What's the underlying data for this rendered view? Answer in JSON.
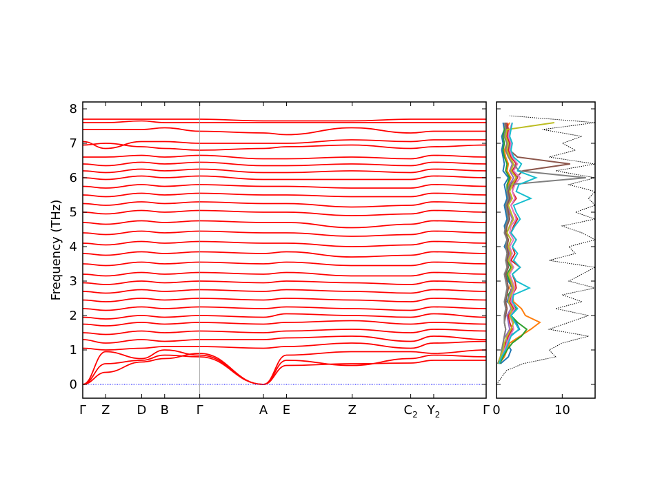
{
  "chart_data": [
    {
      "type": "line",
      "panel": "band-structure",
      "ylabel": "Frequency (THz)",
      "ylim": [
        -0.4,
        8.2
      ],
      "yticks": [
        0,
        1,
        2,
        3,
        4,
        5,
        6,
        7,
        8
      ],
      "kpath_ticks": [
        {
          "label": "Γ",
          "sub": "",
          "pos": 0.0
        },
        {
          "label": "Z",
          "sub": "",
          "pos": 0.057
        },
        {
          "label": "D",
          "sub": "",
          "pos": 0.146
        },
        {
          "label": "B",
          "sub": "",
          "pos": 0.203
        },
        {
          "label": "Γ",
          "sub": "",
          "pos": 0.29
        },
        {
          "label": "A",
          "sub": "",
          "pos": 0.448
        },
        {
          "label": "E",
          "sub": "",
          "pos": 0.505
        },
        {
          "label": "Z",
          "sub": "",
          "pos": 0.668
        },
        {
          "label": "C",
          "sub": "2",
          "pos": 0.813
        },
        {
          "label": "Y",
          "sub": "2",
          "pos": 0.87
        },
        {
          "label": "Γ",
          "sub": "",
          "pos": 1.0
        }
      ],
      "vertical_lines_at": [
        0.29
      ],
      "zero_line": {
        "y": 0,
        "color": "#0000ff",
        "style": "dotted"
      },
      "band_color": "#ff0000",
      "series": [
        {
          "values": [
            0.0,
            0.35,
            0.65,
            0.75,
            0.9,
            0.0,
            0.55,
            0.6,
            0.62,
            0.7,
            0.7,
            0.0
          ]
        },
        {
          "values": [
            0.0,
            0.6,
            0.7,
            0.85,
            0.8,
            0.0,
            0.7,
            0.55,
            0.75,
            0.85,
            0.8,
            0.0
          ]
        },
        {
          "values": [
            0.0,
            0.95,
            0.75,
            1.0,
            0.85,
            0.0,
            0.85,
            0.95,
            0.95,
            0.9,
            1.0,
            0.0
          ]
        },
        {
          "values": [
            1.05,
            1.0,
            1.05,
            1.1,
            1.1,
            1.05,
            1.1,
            1.2,
            1.05,
            1.2,
            1.25,
            1.05
          ]
        },
        {
          "values": [
            1.3,
            1.2,
            1.3,
            1.25,
            1.3,
            1.3,
            1.35,
            1.4,
            1.25,
            1.4,
            1.3,
            1.3
          ]
        },
        {
          "values": [
            1.5,
            1.45,
            1.55,
            1.5,
            1.55,
            1.5,
            1.55,
            1.6,
            1.5,
            1.6,
            1.55,
            1.5
          ]
        },
        {
          "values": [
            1.75,
            1.7,
            1.8,
            1.75,
            1.8,
            1.75,
            1.8,
            1.85,
            1.75,
            1.8,
            1.75,
            1.75
          ]
        },
        {
          "values": [
            1.95,
            1.9,
            2.0,
            1.95,
            2.0,
            1.95,
            2.05,
            2.0,
            1.95,
            2.05,
            1.95,
            1.95
          ]
        },
        {
          "values": [
            2.2,
            2.15,
            2.25,
            2.2,
            2.25,
            2.2,
            2.25,
            2.2,
            2.15,
            2.25,
            2.2,
            2.2
          ]
        },
        {
          "values": [
            2.45,
            2.4,
            2.5,
            2.45,
            2.5,
            2.45,
            2.5,
            2.45,
            2.4,
            2.5,
            2.45,
            2.45
          ]
        },
        {
          "values": [
            2.7,
            2.65,
            2.75,
            2.7,
            2.75,
            2.7,
            2.75,
            2.7,
            2.65,
            2.75,
            2.7,
            2.7
          ]
        },
        {
          "values": [
            2.95,
            2.9,
            3.0,
            2.95,
            3.0,
            2.95,
            3.0,
            2.95,
            2.9,
            3.0,
            2.95,
            2.95
          ]
        },
        {
          "values": [
            3.2,
            3.15,
            3.25,
            3.2,
            3.25,
            3.2,
            3.25,
            3.15,
            3.15,
            3.25,
            3.2,
            3.2
          ]
        },
        {
          "values": [
            3.5,
            3.45,
            3.55,
            3.5,
            3.55,
            3.5,
            3.55,
            3.45,
            3.45,
            3.55,
            3.5,
            3.5
          ]
        },
        {
          "values": [
            3.8,
            3.75,
            3.85,
            3.8,
            3.85,
            3.8,
            3.85,
            3.7,
            3.75,
            3.85,
            3.8,
            3.8
          ]
        },
        {
          "values": [
            4.1,
            4.05,
            4.15,
            4.1,
            4.15,
            4.1,
            4.1,
            4.0,
            4.05,
            4.15,
            4.1,
            4.1
          ]
        },
        {
          "values": [
            4.4,
            4.35,
            4.45,
            4.4,
            4.45,
            4.4,
            4.4,
            4.3,
            4.35,
            4.45,
            4.4,
            4.4
          ]
        },
        {
          "values": [
            4.7,
            4.65,
            4.75,
            4.7,
            4.75,
            4.7,
            4.7,
            4.55,
            4.65,
            4.75,
            4.7,
            4.7
          ]
        },
        {
          "values": [
            5.0,
            4.95,
            5.05,
            5.0,
            5.05,
            5.0,
            5.0,
            4.9,
            4.95,
            5.05,
            5.0,
            5.0
          ]
        },
        {
          "values": [
            5.25,
            5.2,
            5.3,
            5.25,
            5.3,
            5.25,
            5.25,
            5.15,
            5.2,
            5.3,
            5.25,
            5.25
          ]
        },
        {
          "values": [
            5.5,
            5.45,
            5.55,
            5.5,
            5.55,
            5.5,
            5.5,
            5.45,
            5.45,
            5.55,
            5.5,
            5.5
          ]
        },
        {
          "values": [
            5.75,
            5.7,
            5.8,
            5.75,
            5.8,
            5.75,
            5.75,
            5.7,
            5.7,
            5.8,
            5.75,
            5.75
          ]
        },
        {
          "values": [
            6.0,
            5.95,
            6.05,
            6.0,
            6.05,
            5.95,
            5.95,
            5.95,
            5.95,
            6.05,
            6.0,
            6.0
          ]
        },
        {
          "values": [
            6.2,
            6.15,
            6.25,
            6.2,
            6.25,
            6.15,
            6.15,
            6.2,
            6.15,
            6.25,
            6.2,
            6.2
          ]
        },
        {
          "values": [
            6.4,
            6.35,
            6.45,
            6.4,
            6.45,
            6.35,
            6.35,
            6.4,
            6.35,
            6.45,
            6.4,
            6.4
          ]
        },
        {
          "values": [
            6.6,
            6.6,
            6.65,
            6.6,
            6.65,
            6.55,
            6.55,
            6.6,
            6.55,
            6.65,
            6.6,
            6.6
          ]
        },
        {
          "values": [
            6.95,
            7.0,
            6.9,
            6.85,
            6.8,
            6.85,
            6.9,
            6.95,
            6.85,
            6.9,
            6.95,
            6.95
          ]
        },
        {
          "values": [
            7.05,
            6.85,
            7.05,
            7.05,
            7.0,
            7.0,
            7.0,
            7.1,
            7.05,
            7.1,
            7.1,
            7.05
          ]
        },
        {
          "values": [
            7.4,
            7.4,
            7.4,
            7.45,
            7.35,
            7.3,
            7.25,
            7.45,
            7.3,
            7.35,
            7.35,
            7.4
          ]
        },
        {
          "values": [
            7.6,
            7.6,
            7.65,
            7.6,
            7.6,
            7.6,
            7.6,
            7.6,
            7.6,
            7.6,
            7.6,
            7.6
          ]
        },
        {
          "values": [
            7.7,
            7.7,
            7.7,
            7.7,
            7.7,
            7.65,
            7.65,
            7.65,
            7.7,
            7.7,
            7.7,
            7.7
          ]
        }
      ]
    },
    {
      "type": "line",
      "panel": "density-of-states",
      "xlim": [
        0,
        15
      ],
      "ylim": [
        -0.4,
        8.2
      ],
      "xticks": [
        0,
        10
      ],
      "total_dos_style": "dotted",
      "total_dos_color": "#000000",
      "total_dos": {
        "y": [
          0.0,
          0.4,
          0.6,
          0.8,
          1.0,
          1.2,
          1.4,
          1.6,
          1.8,
          2.0,
          2.2,
          2.4,
          2.6,
          2.8,
          3.0,
          3.2,
          3.4,
          3.6,
          3.8,
          4.0,
          4.2,
          4.4,
          4.6,
          4.8,
          5.0,
          5.2,
          5.4,
          5.6,
          5.8,
          6.0,
          6.2,
          6.4,
          6.6,
          6.8,
          7.0,
          7.2,
          7.4,
          7.6,
          7.8
        ],
        "x": [
          0.0,
          1.5,
          4.0,
          9.0,
          8.0,
          10.0,
          14.0,
          8.0,
          11.0,
          14.0,
          9.0,
          13.0,
          10.0,
          15.0,
          11.0,
          13.0,
          15.0,
          8.0,
          12.0,
          11.0,
          15.0,
          13.0,
          10.0,
          15.0,
          12.0,
          15.0,
          14.0,
          15.0,
          11.0,
          15.0,
          9.0,
          15.0,
          8.0,
          12.0,
          10.0,
          13.0,
          7.0,
          15.0,
          2.0
        ]
      },
      "partial_dos_colors": [
        "#1f77b4",
        "#ff7f0e",
        "#2ca02c",
        "#d62728",
        "#9467bd",
        "#8c564b",
        "#e377c2",
        "#7f7f7f",
        "#bcbd22",
        "#17becf"
      ],
      "partial_dos": {
        "y": [
          0.6,
          0.8,
          1.0,
          1.2,
          1.4,
          1.6,
          1.8,
          2.0,
          2.2,
          2.4,
          2.6,
          2.8,
          3.0,
          3.2,
          3.4,
          3.6,
          3.8,
          4.0,
          4.2,
          4.4,
          4.6,
          4.8,
          5.0,
          5.2,
          5.4,
          5.6,
          5.8,
          6.0,
          6.2,
          6.4,
          6.6,
          6.8,
          7.0,
          7.2,
          7.4,
          7.6
        ],
        "series": [
          [
            0.6,
            1.8,
            2.2,
            1.6,
            2.0,
            3.5,
            3.0,
            2.0,
            2.8,
            1.6,
            2.0,
            2.4,
            1.8,
            1.6,
            2.2,
            1.4,
            1.8,
            1.2,
            1.6,
            1.4,
            1.2,
            1.6,
            1.4,
            1.2,
            1.6,
            1.4,
            1.2,
            1.8,
            1.0,
            1.2,
            1.0,
            0.8,
            1.0,
            0.8,
            1.2,
            1.0
          ],
          [
            0.4,
            1.2,
            1.6,
            2.0,
            3.6,
            5.2,
            6.6,
            4.4,
            3.8,
            2.6,
            2.4,
            2.0,
            2.2,
            1.8,
            2.4,
            1.6,
            2.0,
            1.6,
            1.8,
            1.4,
            1.6,
            1.8,
            2.0,
            1.6,
            1.8,
            1.6,
            1.8,
            2.2,
            1.6,
            1.8,
            1.4,
            1.2,
            1.6,
            1.2,
            1.4,
            2.0
          ],
          [
            0.5,
            1.0,
            1.6,
            2.4,
            3.8,
            4.6,
            3.2,
            2.2,
            3.0,
            2.0,
            1.8,
            2.4,
            2.0,
            1.6,
            2.2,
            1.6,
            1.8,
            1.4,
            1.6,
            1.6,
            1.4,
            1.8,
            1.6,
            1.4,
            1.8,
            1.6,
            1.6,
            2.0,
            1.4,
            1.6,
            1.2,
            1.0,
            1.2,
            1.0,
            1.2,
            1.4
          ],
          [
            0.4,
            0.8,
            1.2,
            1.4,
            1.8,
            2.4,
            2.0,
            1.8,
            2.6,
            2.0,
            2.4,
            3.0,
            2.8,
            2.4,
            3.6,
            2.2,
            2.8,
            2.4,
            3.0,
            2.2,
            2.6,
            3.2,
            2.6,
            2.2,
            3.0,
            2.4,
            2.6,
            3.2,
            2.4,
            3.0,
            2.2,
            1.8,
            2.0,
            1.6,
            1.8,
            1.6
          ],
          [
            0.3,
            0.8,
            1.2,
            1.6,
            1.4,
            2.0,
            1.8,
            1.6,
            2.2,
            1.8,
            2.0,
            2.4,
            2.2,
            1.8,
            2.4,
            1.8,
            2.0,
            1.8,
            2.2,
            1.6,
            2.0,
            2.4,
            2.0,
            1.8,
            2.2,
            1.8,
            2.0,
            2.6,
            2.0,
            2.4,
            1.8,
            1.4,
            1.6,
            1.2,
            1.4,
            1.2
          ],
          [
            0.2,
            0.6,
            0.8,
            1.0,
            1.2,
            1.4,
            1.2,
            1.4,
            1.6,
            1.4,
            1.6,
            1.8,
            1.6,
            1.4,
            1.8,
            1.6,
            1.8,
            1.6,
            1.8,
            1.4,
            1.6,
            2.0,
            1.8,
            1.6,
            2.0,
            1.8,
            2.2,
            3.0,
            4.0,
            11.2,
            3.2,
            2.0,
            1.8,
            1.4,
            1.6,
            1.4
          ],
          [
            0.3,
            0.8,
            1.2,
            1.6,
            2.0,
            2.6,
            2.4,
            2.0,
            2.8,
            2.2,
            2.4,
            2.8,
            2.4,
            2.0,
            2.6,
            2.0,
            2.4,
            2.0,
            2.6,
            2.0,
            2.2,
            3.0,
            2.6,
            2.2,
            2.8,
            2.4,
            2.8,
            3.6,
            2.6,
            3.2,
            2.4,
            2.0,
            2.2,
            1.8,
            2.0,
            2.4
          ],
          [
            0.2,
            0.6,
            0.8,
            1.0,
            1.2,
            1.4,
            1.2,
            1.2,
            1.4,
            1.2,
            1.4,
            1.6,
            1.4,
            1.2,
            1.6,
            1.4,
            1.6,
            1.4,
            1.6,
            1.2,
            1.4,
            1.8,
            1.6,
            1.4,
            1.8,
            1.6,
            2.0,
            13.6,
            3.4,
            2.6,
            1.8,
            1.4,
            1.6,
            1.2,
            1.4,
            1.2
          ],
          [
            0.3,
            0.6,
            1.0,
            1.2,
            1.6,
            2.2,
            2.6,
            2.0,
            2.4,
            1.8,
            2.2,
            2.6,
            2.2,
            1.8,
            2.4,
            1.8,
            2.2,
            1.8,
            2.2,
            1.6,
            2.0,
            2.6,
            2.2,
            1.8,
            2.4,
            2.0,
            2.4,
            3.0,
            2.2,
            2.6,
            2.0,
            1.6,
            1.8,
            1.4,
            1.6,
            8.8
          ],
          [
            0.4,
            0.8,
            1.4,
            1.8,
            2.2,
            3.4,
            2.8,
            2.2,
            3.2,
            2.4,
            2.6,
            5.0,
            3.0,
            2.4,
            3.6,
            2.6,
            3.2,
            2.4,
            3.0,
            2.2,
            2.8,
            3.6,
            3.0,
            2.6,
            5.2,
            3.0,
            3.4,
            6.0,
            3.2,
            3.8,
            2.6,
            2.2,
            2.4,
            2.0,
            2.2,
            2.4
          ]
        ]
      }
    }
  ]
}
